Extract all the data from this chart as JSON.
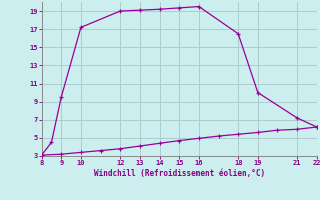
{
  "xlabel": "Windchill (Refroidissement éolien,°C)",
  "xlim": [
    8,
    22
  ],
  "ylim": [
    3,
    20
  ],
  "xticks": [
    8,
    9,
    10,
    12,
    13,
    14,
    15,
    16,
    18,
    19,
    21,
    22
  ],
  "yticks": [
    3,
    5,
    7,
    9,
    11,
    13,
    15,
    17,
    19
  ],
  "line1_x": [
    8,
    8.5,
    9,
    10,
    12,
    13,
    14,
    15,
    16,
    18,
    19,
    21,
    22
  ],
  "line1_y": [
    3.1,
    4.5,
    9.5,
    17.2,
    19.0,
    19.1,
    19.2,
    19.35,
    19.5,
    16.5,
    10.0,
    7.2,
    6.2
  ],
  "line2_x": [
    8,
    9,
    10,
    11,
    12,
    13,
    14,
    15,
    16,
    17,
    18,
    19,
    20,
    21,
    22
  ],
  "line2_y": [
    3.1,
    3.2,
    3.4,
    3.6,
    3.8,
    4.1,
    4.4,
    4.7,
    4.95,
    5.2,
    5.4,
    5.6,
    5.85,
    5.95,
    6.2
  ],
  "line_color": "#990099",
  "bg_color": "#cceeee",
  "grid_color": "#aacccc",
  "label_color": "#880088",
  "tick_color": "#880088",
  "spine_color": "#888888"
}
